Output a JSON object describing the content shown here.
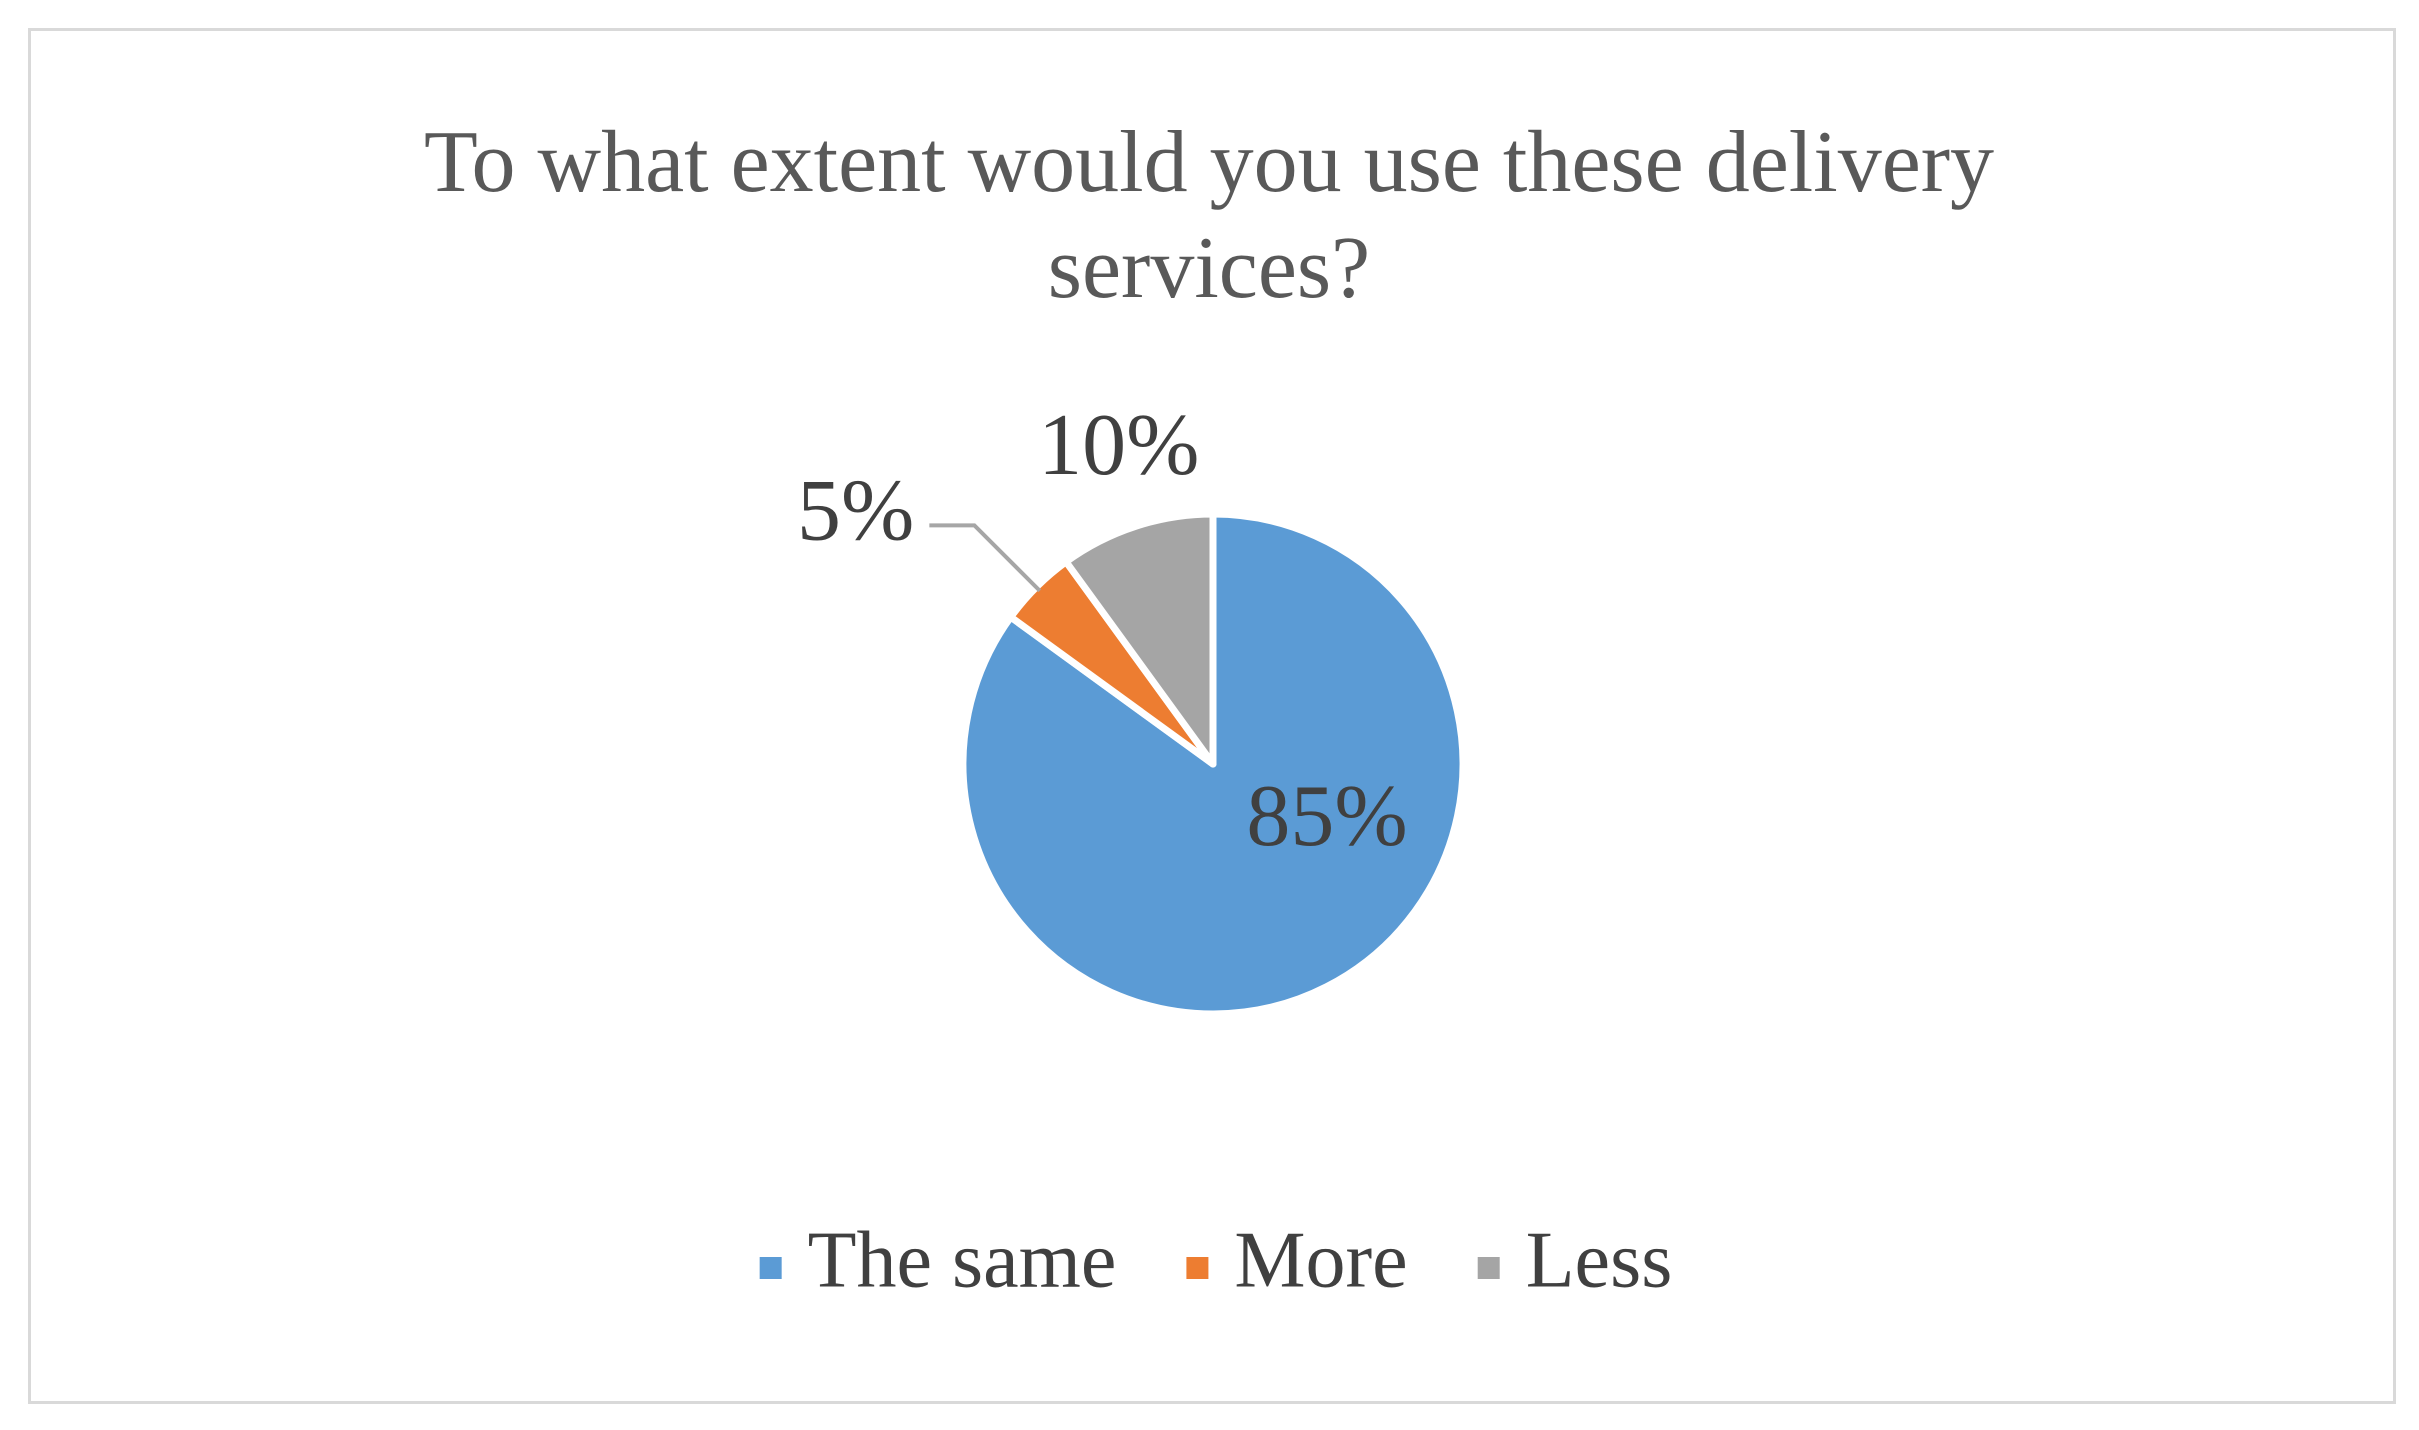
{
  "chart_data": {
    "type": "pie",
    "title": "To what extent would you use these delivery services?",
    "categories": [
      "The same",
      "More",
      "Less"
    ],
    "values": [
      85,
      5,
      10
    ],
    "value_labels": [
      "85%",
      "5%",
      "10%"
    ],
    "colors": [
      "#5b9bd5",
      "#ed7d31",
      "#a5a5a5"
    ],
    "legend": "bottom"
  }
}
